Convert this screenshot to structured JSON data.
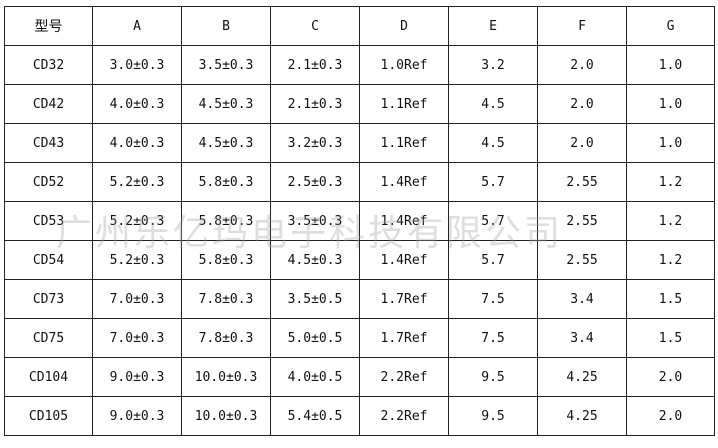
{
  "table": {
    "headers": [
      "型号",
      "A",
      "B",
      "C",
      "D",
      "E",
      "F",
      "G"
    ],
    "rows": [
      [
        "CD32",
        "3.0±0.3",
        "3.5±0.3",
        "2.1±0.3",
        "1.0Ref",
        "3.2",
        "2.0",
        "1.0"
      ],
      [
        "CD42",
        "4.0±0.3",
        "4.5±0.3",
        "2.1±0.3",
        "1.1Ref",
        "4.5",
        "2.0",
        "1.0"
      ],
      [
        "CD43",
        "4.0±0.3",
        "4.5±0.3",
        "3.2±0.3",
        "1.1Ref",
        "4.5",
        "2.0",
        "1.0"
      ],
      [
        "CD52",
        "5.2±0.3",
        "5.8±0.3",
        "2.5±0.3",
        "1.4Ref",
        "5.7",
        "2.55",
        "1.2"
      ],
      [
        "CD53",
        "5.2±0.3",
        "5.8±0.3",
        "3.5±0.3",
        "1.4Ref",
        "5.7",
        "2.55",
        "1.2"
      ],
      [
        "CD54",
        "5.2±0.3",
        "5.8±0.3",
        "4.5±0.3",
        "1.4Ref",
        "5.7",
        "2.55",
        "1.2"
      ],
      [
        "CD73",
        "7.0±0.3",
        "7.8±0.3",
        "3.5±0.5",
        "1.7Ref",
        "7.5",
        "3.4",
        "1.5"
      ],
      [
        "CD75",
        "7.0±0.3",
        "7.8±0.3",
        "5.0±0.5",
        "1.7Ref",
        "7.5",
        "3.4",
        "1.5"
      ],
      [
        "CD104",
        "9.0±0.3",
        "10.0±0.3",
        "4.0±0.5",
        "2.2Ref",
        "9.5",
        "4.25",
        "2.0"
      ],
      [
        "CD105",
        "9.0±0.3",
        "10.0±0.3",
        "5.4±0.5",
        "2.2Ref",
        "9.5",
        "4.25",
        "2.0"
      ]
    ]
  },
  "watermark": "广州乐亿玛电子科技有限公司"
}
